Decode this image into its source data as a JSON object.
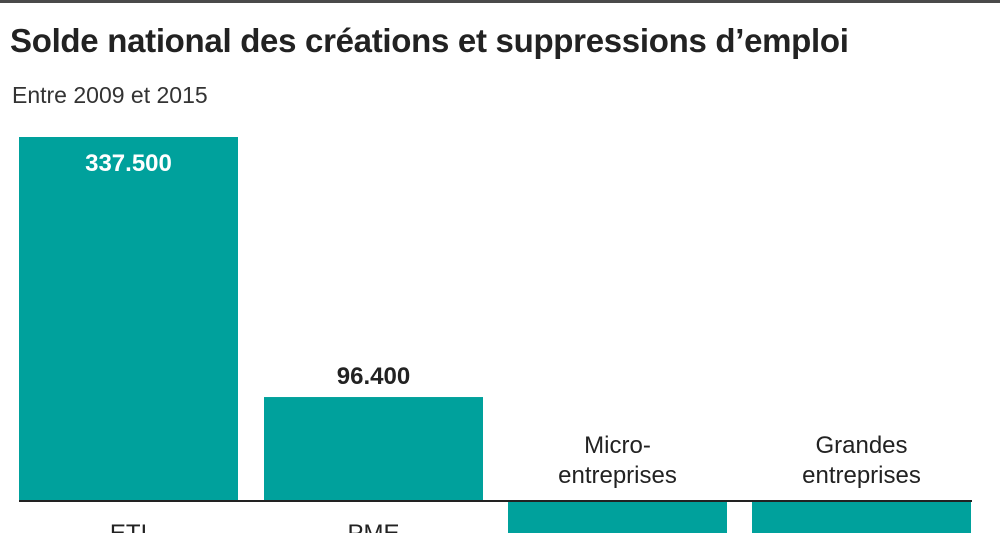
{
  "title": "Solde national des créations et suppressions d’emploi",
  "subtitle": "Entre 2009 et 2015",
  "colors": {
    "bar": "#00a19c",
    "axis": "#222222",
    "title": "#222222",
    "inner_label": "#ffffff",
    "outer_label": "#222222"
  },
  "chart_data": {
    "type": "bar",
    "categories": [
      "ETI",
      "PME",
      "Micro-entreprises",
      "Grandes entreprises"
    ],
    "category_labels": {
      "0": [
        "ETI"
      ],
      "1": [
        "PME"
      ],
      "2": [
        "Micro-",
        "entreprises"
      ],
      "3": [
        "Grandes",
        "entreprises"
      ]
    },
    "values": [
      337500,
      96400,
      null,
      null
    ],
    "data_labels": [
      "337.500",
      "96.400",
      "",
      ""
    ],
    "values_sign": [
      "positive",
      "positive",
      "negative",
      "negative"
    ],
    "title": "Solde national des créations et suppressions d’emploi",
    "subtitle": "Entre 2009 et 2015",
    "xlabel": "",
    "ylabel": "",
    "grid": false,
    "legend": "none"
  }
}
